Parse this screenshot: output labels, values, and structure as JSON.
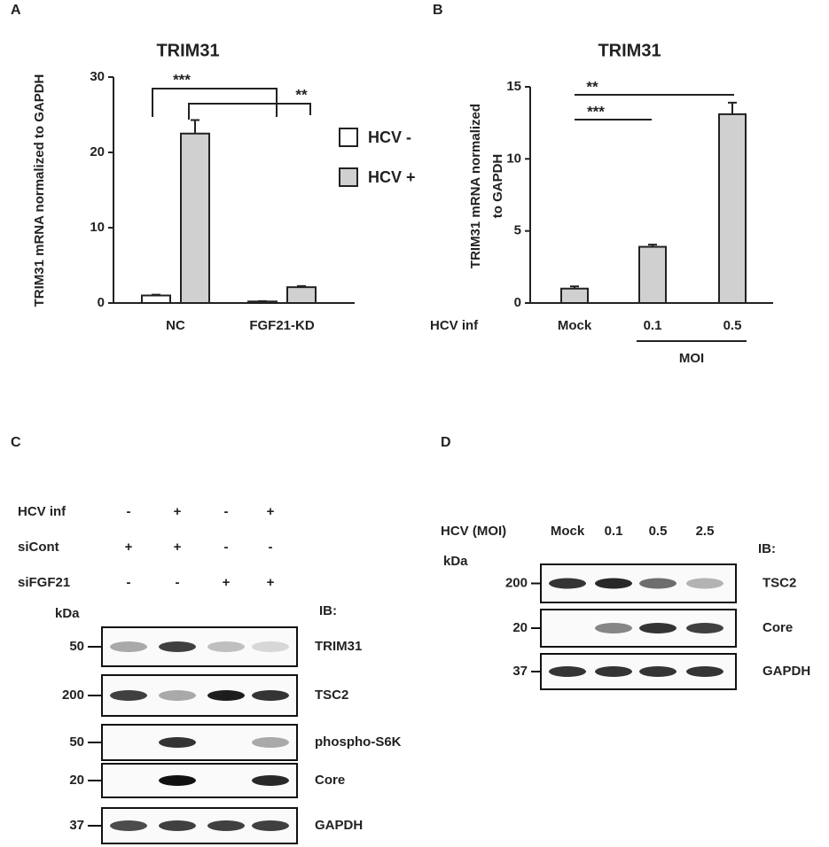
{
  "chart_data": [
    {
      "type": "bar",
      "panel": "A",
      "title": "TRIM31",
      "y_label": "TRIM31 mRNA normalized to GAPDH",
      "categories": [
        "NC",
        "FGF21-KD"
      ],
      "series": [
        {
          "name": "HCV -",
          "color": "#ffffff",
          "values": [
            1,
            0.2
          ],
          "errors": [
            0.1,
            0.05
          ]
        },
        {
          "name": "HCV +",
          "color": "#d0d0d0",
          "values": [
            22.5,
            2.1
          ],
          "errors": [
            1.8,
            0.15
          ]
        }
      ],
      "ylim": [
        0,
        30
      ],
      "yticks": [
        0,
        10,
        20,
        30
      ],
      "annotations": [
        "***",
        "**"
      ]
    },
    {
      "type": "bar",
      "panel": "B",
      "title": "TRIM31",
      "y_label": [
        "TRIM31 mRNA normalized",
        "to GAPDH"
      ],
      "x_row_label": "HCV inf",
      "group_label": "MOI",
      "categories": [
        "Mock",
        "0.1",
        "0.5"
      ],
      "series": [
        {
          "color": "#d0d0d0",
          "values": [
            1,
            3.9,
            13.1
          ],
          "errors": [
            0.15,
            0.15,
            0.8
          ]
        }
      ],
      "ylim": [
        0,
        15
      ],
      "yticks": [
        0,
        5,
        10,
        15
      ],
      "annotations": [
        "**",
        "***"
      ]
    }
  ],
  "blots": [
    {
      "panel": "C",
      "kda_label": "kDa",
      "ib_label": "IB:",
      "conditions": [
        {
          "label": "HCV inf",
          "values": [
            "-",
            "+",
            "-",
            "+"
          ]
        },
        {
          "label": "siCont",
          "values": [
            "+",
            "+",
            "-",
            "-"
          ]
        },
        {
          "label": "siFGF21",
          "values": [
            "-",
            "-",
            "+",
            "+"
          ]
        }
      ],
      "bands": [
        {
          "marker": "50",
          "name": "TRIM31",
          "intensities": [
            0.35,
            0.8,
            0.25,
            0.15
          ]
        },
        {
          "marker": "200",
          "name": "TSC2",
          "intensities": [
            0.8,
            0.35,
            0.95,
            0.85
          ]
        },
        {
          "marker": "50",
          "name": "phospho-S6K",
          "intensities": [
            0,
            0.85,
            0,
            0.35
          ]
        },
        {
          "marker": "20",
          "name": "Core",
          "intensities": [
            0,
            1,
            0,
            0.9
          ]
        },
        {
          "marker": "37",
          "name": "GAPDH",
          "intensities": [
            0.75,
            0.8,
            0.8,
            0.8
          ]
        }
      ]
    },
    {
      "panel": "D",
      "kda_label": "kDa",
      "ib_label": "IB:",
      "lane_header": "HCV (MOI)",
      "lanes": [
        "Mock",
        "0.1",
        "0.5",
        "2.5"
      ],
      "bands": [
        {
          "marker": "200",
          "name": "TSC2",
          "intensities": [
            0.85,
            0.9,
            0.6,
            0.3
          ]
        },
        {
          "marker": "20",
          "name": "Core",
          "intensities": [
            0,
            0.5,
            0.85,
            0.8
          ]
        },
        {
          "marker": "37",
          "name": "GAPDH",
          "intensities": [
            0.85,
            0.85,
            0.85,
            0.85
          ]
        }
      ]
    }
  ]
}
